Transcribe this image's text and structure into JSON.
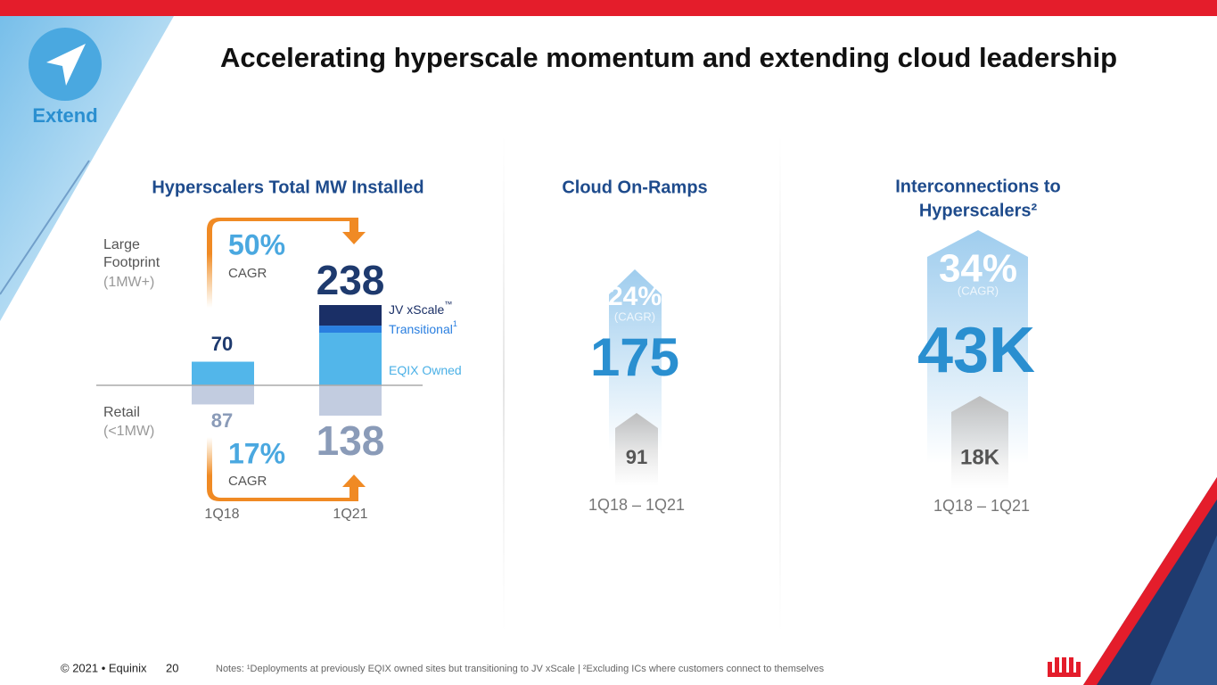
{
  "header": {
    "title": "Accelerating hyperscale momentum and extending cloud leadership",
    "badge": "Extend"
  },
  "mw_panel": {
    "title": "Hyperscalers Total MW Installed",
    "large_label": [
      "Large",
      "Footprint"
    ],
    "large_sub": "(1MW+)",
    "retail_label": "Retail",
    "retail_sub": "(<1MW)",
    "large_growth": "50%",
    "large_growth_label": "CAGR",
    "retail_growth": "17%",
    "retail_growth_label": "CAGR",
    "categories": [
      "1Q18",
      "1Q21"
    ],
    "large_totals": [
      70,
      238
    ],
    "retail": [
      87,
      138
    ],
    "segments": [
      {
        "name": "JV xScale",
        "sup": "™",
        "color": "#1a2f66",
        "values": [
          null,
          61
        ]
      },
      {
        "name": "Transitional",
        "sup": "1",
        "color": "#2a7fe0",
        "values": [
          null,
          21
        ]
      },
      {
        "name": "EQIX Owned",
        "color": "#52b6ea",
        "values": [
          70,
          156
        ]
      }
    ],
    "retail_color": "#c2cce0"
  },
  "onramp_panel": {
    "title": "Cloud On-Ramps",
    "growth": "24%",
    "growth_label": "(CAGR)",
    "current": "175",
    "previous": "91",
    "period": "1Q18 – 1Q21"
  },
  "ic_panel": {
    "title": [
      "Interconnections to",
      "Hyperscalers²"
    ],
    "growth": "34%",
    "growth_label": "(CAGR)",
    "current": "43K",
    "previous": "18K",
    "period": "1Q18 – 1Q21"
  },
  "footer": {
    "copyright": "© 2021 • Equinix",
    "page": "20",
    "notes": "Notes: ¹Deployments at previously EQIX owned sites but transitioning to JV xScale | ²Excluding ICs where customers connect to themselves"
  }
}
